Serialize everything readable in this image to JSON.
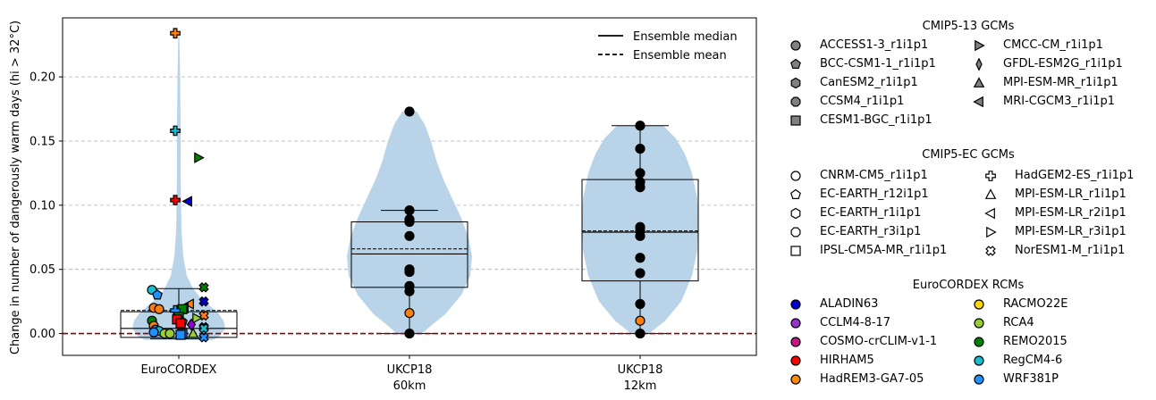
{
  "chart_data": {
    "type": "violin",
    "ylabel": "Change in number of dangerously warm days (hi > 32°C)",
    "ylim": [
      -0.017,
      0.246
    ],
    "yticks": [
      "0.00",
      "0.05",
      "0.10",
      "0.15",
      "0.20"
    ],
    "ytick_values": [
      0.0,
      0.05,
      0.1,
      0.15,
      0.2
    ],
    "grid": "horizontal dashed",
    "zero_line_color": "#8b0000",
    "violin_color": "#b9d4e8",
    "groups": [
      {
        "label_line1": "EuroCORDEX",
        "label_line2": "",
        "box": {
          "q1": -0.003,
          "median": 0.004,
          "mean": 0.018,
          "q3": 0.017,
          "whisker_low": -0.004,
          "whisker_high": 0.035
        }
      },
      {
        "label_line1": "UKCP18",
        "label_line2": "60km",
        "box": {
          "q1": 0.036,
          "median": 0.062,
          "mean": 0.066,
          "q3": 0.087,
          "whisker_low": 0.0,
          "whisker_high": 0.096
        },
        "points": [
          0.173,
          0.096,
          0.089,
          0.087,
          0.076,
          0.05,
          0.048,
          0.037,
          0.033,
          0.016,
          0.0
        ],
        "point_colors": [
          "#000000",
          "#000000",
          "#000000",
          "#000000",
          "#000000",
          "#000000",
          "#000000",
          "#000000",
          "#000000",
          "#ff7f0e",
          "#000000"
        ]
      },
      {
        "label_line1": "UKCP18",
        "label_line2": "12km",
        "box": {
          "q1": 0.041,
          "median": 0.079,
          "mean": 0.08,
          "q3": 0.12,
          "whisker_low": 0.0,
          "whisker_high": 0.162
        },
        "points": [
          0.162,
          0.144,
          0.125,
          0.118,
          0.114,
          0.083,
          0.08,
          0.076,
          0.059,
          0.047,
          0.023,
          0.01,
          0.0
        ],
        "point_colors": [
          "#000000",
          "#000000",
          "#000000",
          "#000000",
          "#000000",
          "#000000",
          "#000000",
          "#000000",
          "#000000",
          "#000000",
          "#000000",
          "#ff7f0e",
          "#000000"
        ]
      }
    ],
    "euro_points": [
      {
        "y": 0.234,
        "color": "#ff7f0e",
        "marker": "plus",
        "dx": -4
      },
      {
        "y": 0.158,
        "color": "#17becf",
        "marker": "plus",
        "dx": -4
      },
      {
        "y": 0.137,
        "color": "#008000",
        "marker": "tri_right",
        "dx": 22
      },
      {
        "y": 0.104,
        "color": "#ff0000",
        "marker": "plus",
        "dx": -4
      },
      {
        "y": 0.103,
        "color": "#0000cd",
        "marker": "tri_left",
        "dx": 10
      },
      {
        "y": 0.036,
        "color": "#008000",
        "marker": "x",
        "dx": 28
      },
      {
        "y": 0.034,
        "color": "#17becf",
        "marker": "circle",
        "dx": -30
      },
      {
        "y": 0.03,
        "color": "#1e90ff",
        "marker": "pentagon",
        "dx": -24
      },
      {
        "y": 0.025,
        "color": "#0000cd",
        "marker": "x",
        "dx": 28
      },
      {
        "y": 0.023,
        "color": "#ff7f0e",
        "marker": "tri_left",
        "dx": 12
      },
      {
        "y": 0.02,
        "color": "#ff0000",
        "marker": "tri_left",
        "dx": 6
      },
      {
        "y": 0.02,
        "color": "#ff7f0e",
        "marker": "circle",
        "dx": -28
      },
      {
        "y": 0.019,
        "color": "#ff7f0e",
        "marker": "circle",
        "dx": -22
      },
      {
        "y": 0.019,
        "color": "#008000",
        "marker": "square",
        "dx": 4
      },
      {
        "y": 0.018,
        "color": "#1e90ff",
        "marker": "plus",
        "dx": -4
      },
      {
        "y": 0.014,
        "color": "#ff7f0e",
        "marker": "x",
        "dx": 28
      },
      {
        "y": 0.013,
        "color": "#008000",
        "marker": "square",
        "dx": 0
      },
      {
        "y": 0.012,
        "color": "#9acd32",
        "marker": "tri_right",
        "dx": 20
      },
      {
        "y": 0.011,
        "color": "#ff0000",
        "marker": "square",
        "dx": -2
      },
      {
        "y": 0.01,
        "color": "#008000",
        "marker": "circle",
        "dx": -30
      },
      {
        "y": 0.009,
        "color": "#17becf",
        "marker": "pentagon",
        "dx": 4
      },
      {
        "y": 0.008,
        "color": "#ff0000",
        "marker": "square",
        "dx": 2
      },
      {
        "y": 0.007,
        "color": "#9400d3",
        "marker": "diamond",
        "dx": 14
      },
      {
        "y": 0.006,
        "color": "#ff7f0e",
        "marker": "circle",
        "dx": -28
      },
      {
        "y": 0.005,
        "color": "#1e90ff",
        "marker": "x",
        "dx": 28
      },
      {
        "y": 0.004,
        "color": "#17becf",
        "marker": "x",
        "dx": 28
      },
      {
        "y": 0.003,
        "color": "#1e90ff",
        "marker": "circle",
        "dx": -26
      },
      {
        "y": 0.002,
        "color": "#17becf",
        "marker": "circle",
        "dx": -22
      },
      {
        "y": 0.001,
        "color": "#1e90ff",
        "marker": "circle",
        "dx": -28
      },
      {
        "y": 0.0,
        "color": "#9acd32",
        "marker": "circle",
        "dx": -16
      },
      {
        "y": 0.0,
        "color": "#9acd32",
        "marker": "circle",
        "dx": -10
      },
      {
        "y": 0.0,
        "color": "#9acd32",
        "marker": "tri_up",
        "dx": 16
      },
      {
        "y": 0.0,
        "color": "#1e90ff",
        "marker": "square",
        "dx": 4
      },
      {
        "y": -0.001,
        "color": "#1e90ff",
        "marker": "square",
        "dx": 2
      },
      {
        "y": -0.003,
        "color": "#1e90ff",
        "marker": "x",
        "dx": 28
      }
    ]
  },
  "plot_legend": {
    "median_label": "Ensemble median",
    "mean_label": "Ensemble mean"
  },
  "legend": {
    "gcm13_title": "CMIP5-13 GCMs",
    "gcm13_items": [
      {
        "label": "ACCESS1-3_r1i1p1",
        "marker": "circle"
      },
      {
        "label": "CMCC-CM_r1i1p1",
        "marker": "tri_right"
      },
      {
        "label": "BCC-CSM1-1_r1i1p1",
        "marker": "pentagon"
      },
      {
        "label": "GFDL-ESM2G_r1i1p1",
        "marker": "thin_diamond"
      },
      {
        "label": "CanESM2_r1i1p1",
        "marker": "hexagon"
      },
      {
        "label": "MPI-ESM-MR_r1i1p1",
        "marker": "tri_up"
      },
      {
        "label": "CCSM4_r1i1p1",
        "marker": "octagon"
      },
      {
        "label": "MRI-CGCM3_r1i1p1",
        "marker": "tri_left"
      },
      {
        "label": "CESM1-BGC_r1i1p1",
        "marker": "square"
      }
    ],
    "gcm13_fill": "#808080",
    "ec_title": "CMIP5-EC GCMs",
    "ec_items": [
      {
        "label": "CNRM-CM5_r1i1p1",
        "marker": "circle"
      },
      {
        "label": "HadGEM2-ES_r1i1p1",
        "marker": "plus"
      },
      {
        "label": "EC-EARTH_r12i1p1",
        "marker": "pentagon"
      },
      {
        "label": "MPI-ESM-LR_r1i1p1",
        "marker": "tri_up"
      },
      {
        "label": "EC-EARTH_r1i1p1",
        "marker": "hexagon"
      },
      {
        "label": "MPI-ESM-LR_r2i1p1",
        "marker": "tri_left"
      },
      {
        "label": "EC-EARTH_r3i1p1",
        "marker": "octagon"
      },
      {
        "label": "MPI-ESM-LR_r3i1p1",
        "marker": "tri_right"
      },
      {
        "label": "IPSL-CM5A-MR_r1i1p1",
        "marker": "square"
      },
      {
        "label": "NorESM1-M_r1i1p1",
        "marker": "x"
      }
    ],
    "ec_fill": "#ffffff",
    "rcm_title": "EuroCORDEX RCMs",
    "rcm_items": [
      {
        "label": "ALADIN63",
        "color": "#0000cd"
      },
      {
        "label": "RACMO22E",
        "color": "#ffd700"
      },
      {
        "label": "CCLM4-8-17",
        "color": "#9932cc"
      },
      {
        "label": "RCA4",
        "color": "#9acd32"
      },
      {
        "label": "COSMO-crCLIM-v1-1",
        "color": "#c71585"
      },
      {
        "label": "REMO2015",
        "color": "#008000"
      },
      {
        "label": "HIRHAM5",
        "color": "#ff0000"
      },
      {
        "label": "RegCM4-6",
        "color": "#17becf"
      },
      {
        "label": "HadREM3-GA7-05",
        "color": "#ff8c00"
      },
      {
        "label": "WRF381P",
        "color": "#1e90ff"
      }
    ]
  }
}
